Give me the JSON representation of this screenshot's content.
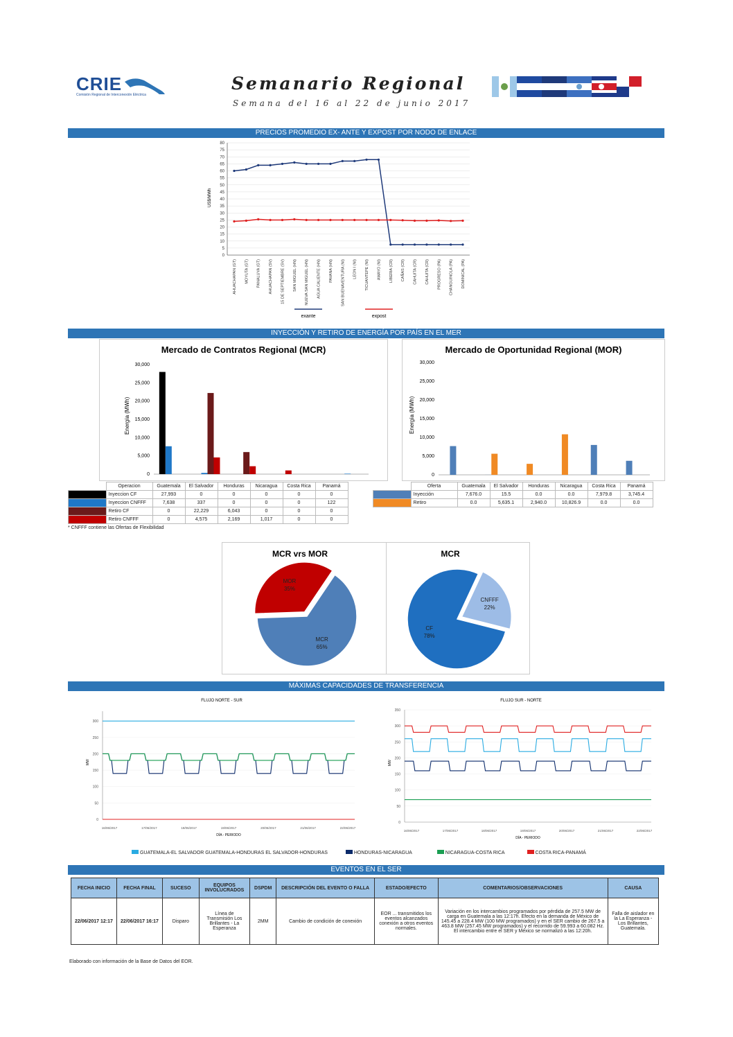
{
  "header": {
    "logo": "CRIE",
    "logo_sub": "Comisión Regional de Interconexión Eléctrica",
    "title": "Semanario Regional",
    "subtitle": "Semana del 16 al 22 de junio 2017"
  },
  "sections": {
    "precios": "PRECIOS PROMEDIO EX- ANTE Y EXPOST POR NODO DE ENLACE",
    "inyeccion": "INYECCIÓN Y RETIRO DE ENERGÍA POR PAÍS EN EL MER",
    "capacidades": "MÁXIMAS CAPACIDADES DE TRANSFERENCIA",
    "eventos": "EVENTOS EN EL SER"
  },
  "colors": {
    "band": "#2e75b6",
    "exante": "#1f3a7a",
    "expost": "#e02020",
    "mcr_cf": "#000000",
    "mcr_cnfff": "#1f78c8",
    "retiro_cf": "#6b1a1a",
    "retiro_cnfff": "#c00000",
    "mor_inj": "#4f7fb8",
    "mor_ret": "#f08a24"
  },
  "chart_data": [
    {
      "type": "line",
      "ylabel": "US$/MWh",
      "ylim": [
        0,
        80
      ],
      "yticks": [
        0,
        5,
        10,
        15,
        20,
        25,
        30,
        35,
        40,
        45,
        50,
        55,
        60,
        65,
        70,
        75,
        80
      ],
      "categories": [
        "AHUACHAPAN (GT)",
        "MOYUTA (GT)",
        "PANALUYA (GT)",
        "AHUACHAPAN (SV)",
        "15 DE SEPTIEMBRE (SV)",
        "SAN MIGUEL (HN)",
        "NUEVA SAN MIGUEL (HN)",
        "AGUA CALIENTE (HN)",
        "PAVANA (HN)",
        "SAN BUENAVENTURA (NI)",
        "LEON I (NI)",
        "TICUANTEPE (NI)",
        "AMAYO (NI)",
        "LIBERIA (CR)",
        "CAÑAS (CR)",
        "CAHUITA (CR)",
        "CAHUITA (CR)",
        "PROGRESO (PA)",
        "CHANGUINOLA (PA)",
        "DOMINICAL (PA)"
      ],
      "series": [
        {
          "name": "exante",
          "values": [
            60,
            61,
            64,
            64,
            65,
            66,
            65,
            65,
            65,
            67,
            67,
            68,
            68,
            7.5,
            7.5,
            7.5,
            7.5,
            7.5,
            7.5,
            7.5
          ]
        },
        {
          "name": "expost",
          "values": [
            24,
            24.5,
            25.5,
            25,
            25,
            25.5,
            25,
            25,
            25,
            25,
            25,
            25,
            25,
            25,
            24.8,
            24.5,
            24.5,
            24.7,
            24.3,
            24.5
          ]
        }
      ]
    },
    {
      "type": "bar",
      "title": "Mercado de Contratos Regional (MCR)",
      "ylabel": "Energía (MWh)",
      "ylim": [
        0,
        30000
      ],
      "yticks": [
        "0",
        "5,000",
        "10,000",
        "15,000",
        "20,000",
        "25,000",
        "30,000"
      ],
      "categories": [
        "Guatemala",
        "El Salvador",
        "Honduras",
        "Nicaragua",
        "Costa Rica",
        "Panamá"
      ],
      "series": [
        {
          "name": "Inyeccion CF",
          "values": [
            27993,
            0,
            0,
            0,
            0,
            0
          ]
        },
        {
          "name": "Inyeccion CNFFF",
          "values": [
            7638,
            337,
            0,
            0,
            0,
            122
          ]
        },
        {
          "name": "Retiro CF",
          "values": [
            0,
            22229,
            6043,
            0,
            0,
            0
          ]
        },
        {
          "name": "Retiro CNFFF",
          "values": [
            0,
            4575,
            2169,
            1017,
            0,
            0
          ]
        }
      ]
    },
    {
      "type": "bar",
      "title": "Mercado de Oportunidad Regional (MOR)",
      "ylabel": "Energía (MWh)",
      "ylim": [
        0,
        30000
      ],
      "yticks": [
        "0",
        "5,000",
        "10,000",
        "15,000",
        "20,000",
        "25,000",
        "30,000"
      ],
      "categories": [
        "Guatemala",
        "El Salvador",
        "Honduras",
        "Nicaragua",
        "Costa Rica",
        "Panamá"
      ],
      "series": [
        {
          "name": "Inyección",
          "values": [
            7676.0,
            15.5,
            0.0,
            0.0,
            7979.8,
            3745.4
          ]
        },
        {
          "name": "Retiro",
          "values": [
            0.0,
            5635.1,
            2940.0,
            10826.9,
            0.0,
            0.0
          ]
        }
      ]
    },
    {
      "type": "pie",
      "title": "MCR vrs MOR",
      "labels": [
        "MOR",
        "MCR"
      ],
      "values": [
        35,
        65
      ],
      "display": [
        "MOR\n35%",
        "MCR\n65%"
      ]
    },
    {
      "type": "pie",
      "title": "MCR",
      "labels": [
        "CNFFF",
        "CF"
      ],
      "values": [
        22,
        78
      ],
      "display": [
        "CNFFF\n22%",
        "CF\n78%"
      ]
    }
  ],
  "mcr_table": {
    "headers": [
      "Operacion",
      "Guatemala",
      "El Salvador",
      "Honduras",
      "Nicaragua",
      "Costa Rica",
      "Panamá"
    ],
    "rows": [
      [
        "Inyeccion CF",
        "27,993",
        "0",
        "0",
        "0",
        "0",
        "0"
      ],
      [
        "Inyeccion CNFFF",
        "7,638",
        "337",
        "0",
        "0",
        "0",
        "122"
      ],
      [
        "Retiro CF",
        "0",
        "22,229",
        "6,043",
        "0",
        "0",
        "0"
      ],
      [
        "Retiro CNFFF",
        "0",
        "4,575",
        "2,169",
        "1,017",
        "0",
        "0"
      ]
    ],
    "note": "* CNFFF contiene las Ofertas de Flexibilidad"
  },
  "mor_table": {
    "headers": [
      "Oferta",
      "Guatemala",
      "El Salvador",
      "Honduras",
      "Nicaragua",
      "Costa Rica",
      "Panamá"
    ],
    "rows": [
      [
        "Inyección",
        "7,676.0",
        "15.5",
        "0.0",
        "0.0",
        "7,979.8",
        "3,745.4"
      ],
      [
        "Retiro",
        "0.0",
        "5,635.1",
        "2,940.0",
        "10,826.9",
        "0.0",
        "0.0"
      ]
    ]
  },
  "transfer": {
    "left_title": "FLUJO NORTE - SUR",
    "right_title": "FLUJO SUR - NORTE",
    "xlabel": "DÍA - PERIODO",
    "legend": [
      "GUATEMALA-EL SALVADOR  GUATEMALA-HONDURAS  EL SALVADOR-HONDURAS",
      "HONDURAS-NICARAGUA",
      "NICARAGUA-COSTA RICA",
      "COSTA RICA-PANAMÁ"
    ],
    "dates": [
      "16/06/2017",
      "17/06/2017",
      "18/06/2017",
      "19/06/2017",
      "20/06/2017",
      "21/06/2017",
      "22/06/2017"
    ]
  },
  "events": {
    "headers": [
      "FECHA INICIO",
      "FECHA FINAL",
      "SUCESO",
      "EQUIPOS INVOLUCRADOS",
      "DSPDM",
      "DESCRIPCIÓN DEL EVENTO O FALLA",
      "ESTADO/EFECTO",
      "COMENTARIOS/OBSERVACIONES",
      "CAUSA"
    ],
    "rows": [
      [
        "22/06/2017 12:17",
        "22/06/2017 16:17",
        "Disparo",
        "Línea de Transmisión Los Brillantes - La Esperanza",
        "2MM",
        "Cambio de condición de conexión",
        "EOR ... transmitidos los eventos alcanzados conexión a otros eventos normales.",
        "Variación en los intercambios programados por pérdida de 257.5 MW de carga en Guatemala a las 12:17h. Efecto en la demanda de México de 145.45 a 228.4 MW (100 MW programados) y en el SER cambio de 267.5 a 463.8 MW (257.45 MW programados) y el recorrido de 59.993 a 60.082 Hz. El intercambio entre el SER y México se normalizó a las 12:20h.",
        "Falla de aislador en la La Esperanza - Los Brillantes, Guatemala."
      ]
    ]
  },
  "footer": "Elaborado con información de la Base de Datos del EOR."
}
